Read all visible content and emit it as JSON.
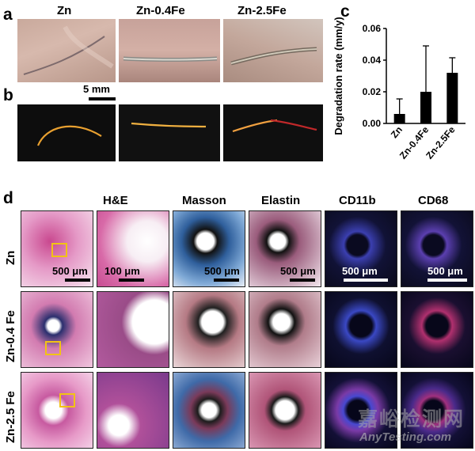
{
  "panel_labels": {
    "a": "a",
    "b": "b",
    "c": "c",
    "d": "d"
  },
  "panel_a": {
    "headers": [
      "Zn",
      "Zn-0.4Fe",
      "Zn-2.5Fe"
    ],
    "scale_bar": "5 mm"
  },
  "panel_d": {
    "columns": [
      "H&E",
      "Masson",
      "Elastin",
      "CD11b",
      "CD68"
    ],
    "rows": [
      "Zn",
      "Zn-0.4 Fe",
      "Zn-2.5 Fe"
    ],
    "scale_bars": [
      "500 μm",
      "100 μm",
      "500 μm",
      "500 μm",
      "500 μm",
      "500 μm"
    ]
  },
  "chart_data": {
    "type": "bar",
    "categories": [
      "Zn",
      "Zn-0.4Fe",
      "Zn-2.5Fe"
    ],
    "values": [
      0.006,
      0.02,
      0.032
    ],
    "errors": [
      0.0095,
      0.029,
      0.0095
    ],
    "ylabel": "Degradation rate (mm/y)",
    "ylim": [
      0,
      0.06
    ],
    "yticks": [
      "0.00",
      "0.02",
      "0.04",
      "0.06"
    ],
    "bar_color": "#000000"
  },
  "watermark": {
    "cn": "嘉峪检测网",
    "en": "AnyTesting.com"
  }
}
